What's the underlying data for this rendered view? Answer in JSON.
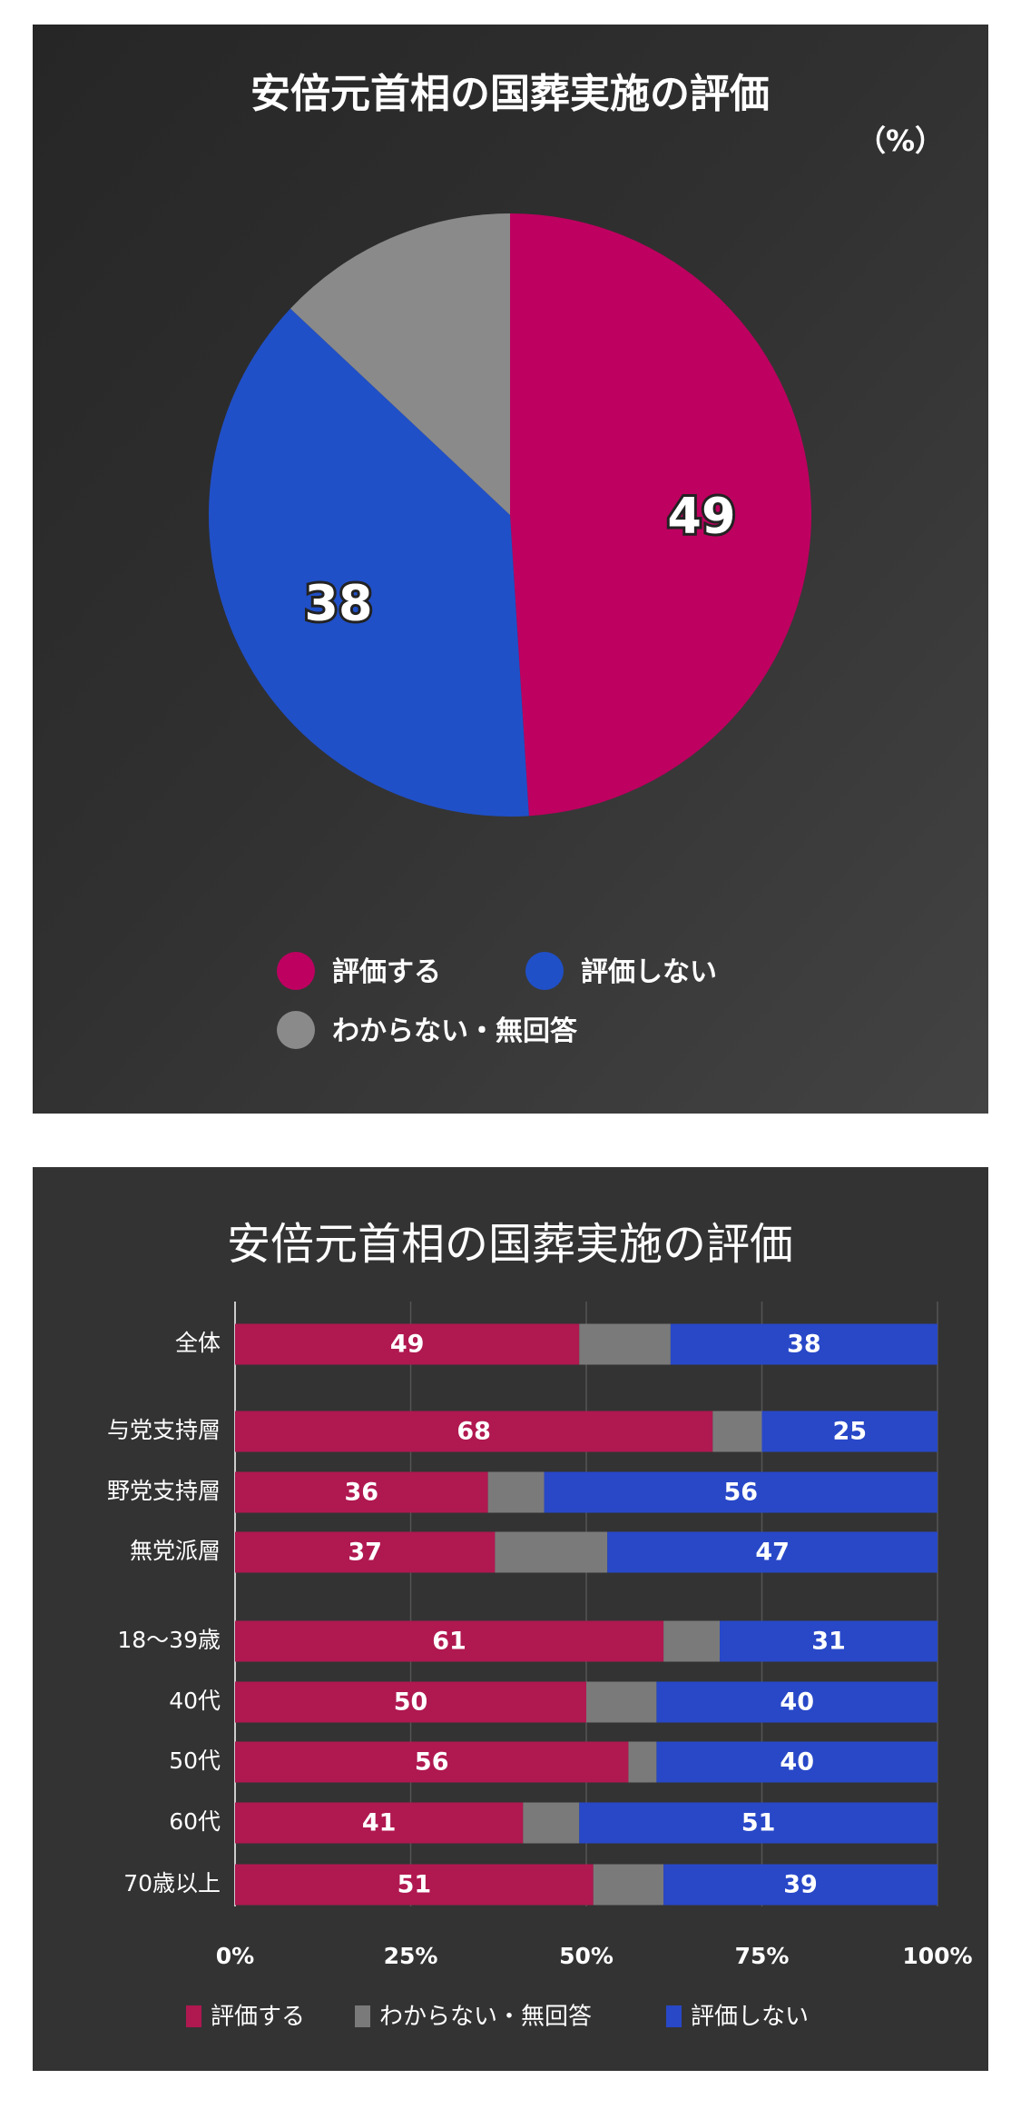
{
  "chart_data": [
    {
      "type": "pie",
      "title": "安倍元首相の国葬実施の評価",
      "unit_label": "（%）",
      "slices": [
        {
          "name": "評価する",
          "value": 49,
          "label": "49",
          "color": "#BE0060"
        },
        {
          "name": "評価しない",
          "value": 38,
          "label": "38",
          "color": "#2050C8"
        },
        {
          "name": "わからない・無回答",
          "value": 13,
          "label": "",
          "color": "#8A8A8A"
        }
      ],
      "legend": "bottom"
    },
    {
      "type": "bar",
      "orientation": "horizontal-stacked-100",
      "title": "安倍元首相の国葬実施の評価",
      "categories": [
        "全体",
        "与党支持層",
        "野党支持層",
        "無党派層",
        "18〜39歳",
        "40代",
        "50代",
        "60代",
        "70歳以上"
      ],
      "series": [
        {
          "name": "評価する",
          "color": "#B01850",
          "values": [
            49,
            68,
            36,
            37,
            61,
            50,
            56,
            41,
            51
          ],
          "labeled": true
        },
        {
          "name": "わからない・無回答",
          "color": "#7A7A7A",
          "values": [
            13,
            7,
            8,
            16,
            8,
            10,
            4,
            8,
            10
          ],
          "labeled": false
        },
        {
          "name": "評価しない",
          "color": "#2848C8",
          "values": [
            38,
            25,
            56,
            47,
            31,
            40,
            40,
            51,
            39
          ],
          "labeled": true
        }
      ],
      "xticks": [
        "0%",
        "25%",
        "50%",
        "75%",
        "100%"
      ],
      "xlim": [
        0,
        100
      ],
      "grid": true,
      "legend": "bottom"
    }
  ]
}
